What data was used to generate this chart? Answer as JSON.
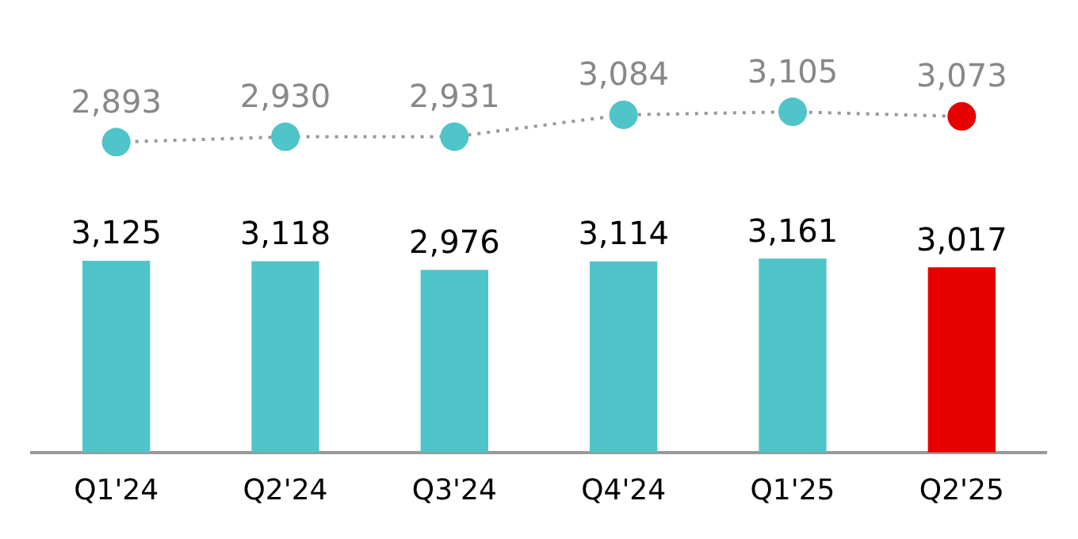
{
  "chart_data": [
    {
      "type": "line",
      "categories": [
        null,
        null,
        null,
        null,
        null,
        null
      ],
      "tick_labels": false,
      "series": [
        {
          "color": "#999999",
          "colors": [
            "#4fc4c9",
            "#4fc4c9",
            "#4fc4c9",
            "#4fc4c9",
            "#4fc4c9",
            "#e60000"
          ],
          "values": [
            2893,
            2930,
            2931,
            3084,
            3105,
            3073
          ],
          "value_labels": [
            "2,893",
            "2,930",
            "2,931",
            "3,084",
            "3,105",
            "3,073"
          ]
        }
      ],
      "marker": "circle",
      "line_style": "dotted",
      "grid": false,
      "legend": false
    },
    {
      "type": "bar",
      "categories": [
        "Q1'24",
        "Q2'24",
        "Q3'24",
        "Q4'24",
        "Q1'25",
        "Q2'25"
      ],
      "series": [
        {
          "colors": [
            "#4fc4c9",
            "#4fc4c9",
            "#4fc4c9",
            "#4fc4c9",
            "#4fc4c9",
            "#e60000"
          ],
          "values": [
            3125,
            3118,
            2976,
            3114,
            3161,
            3017
          ],
          "value_labels": [
            "3,125",
            "3,118",
            "2,976",
            "3,114",
            "3,161",
            "3,017"
          ]
        }
      ],
      "tick_labels": "x",
      "grid": false,
      "legend": false
    }
  ]
}
